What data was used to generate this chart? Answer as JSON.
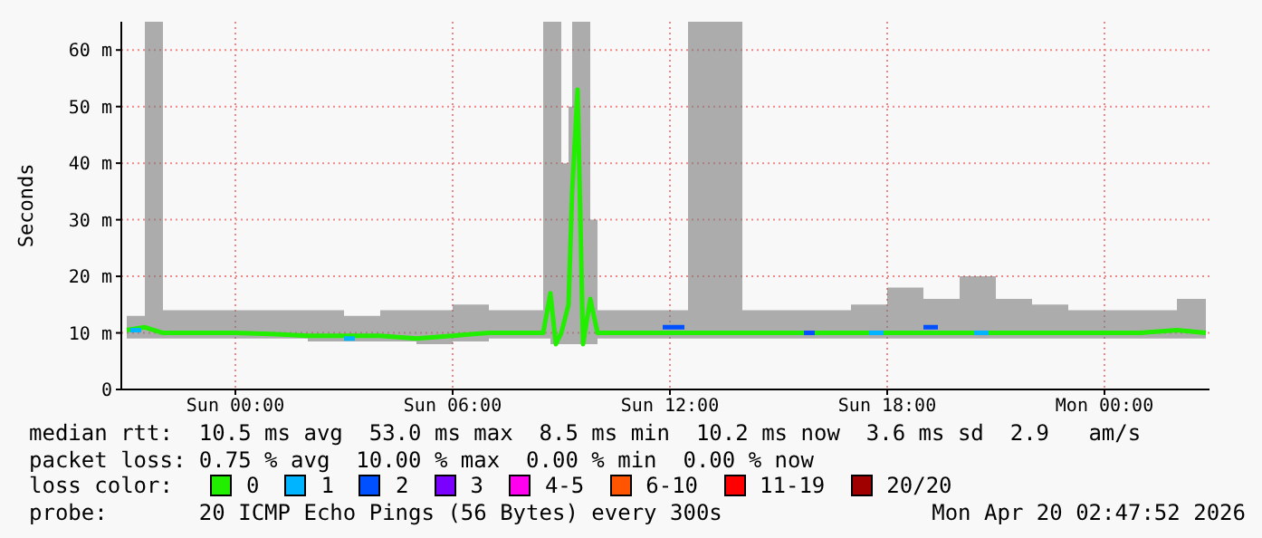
{
  "chart_data": {
    "type": "line",
    "ylabel": "Seconds",
    "legend_title": "loss color:",
    "legend": "bottom",
    "grid": true,
    "line_style": "solid",
    "marker": "none",
    "xlim": [
      "2026-04-18T20:51",
      "2026-04-20T02:54"
    ],
    "xticks": [
      {
        "value": "2026-04-19T00:00",
        "label": "Sun 00:00"
      },
      {
        "value": "2026-04-19T06:00",
        "label": "Sun 06:00"
      },
      {
        "value": "2026-04-19T12:00",
        "label": "Sun 12:00"
      },
      {
        "value": "2026-04-19T18:00",
        "label": "Sun 18:00"
      },
      {
        "value": "2026-04-20T00:00",
        "label": "Mon 00:00"
      }
    ],
    "ylim": [
      0,
      65
    ],
    "yticks": [
      0,
      {
        "value": 10,
        "label": "10 m"
      },
      {
        "value": 20,
        "label": "20 m"
      },
      {
        "value": 30,
        "label": "30 m"
      },
      {
        "value": 40,
        "label": "40 m"
      },
      {
        "value": 50,
        "label": "50 m"
      },
      {
        "value": 60,
        "label": "60 m"
      }
    ],
    "series": [
      {
        "name": "0",
        "color": "#22ee00",
        "x": [
          "2026-04-18T21:00",
          "2026-04-18T21:30",
          "2026-04-18T22:00",
          "2026-04-18T23:00",
          "2026-04-19T00:00",
          "2026-04-19T01:00",
          "2026-04-19T02:00",
          "2026-04-19T03:00",
          "2026-04-19T04:00",
          "2026-04-19T05:00",
          "2026-04-19T06:00",
          "2026-04-19T07:00",
          "2026-04-19T08:00",
          "2026-04-19T08:30",
          "2026-04-19T08:42",
          "2026-04-19T08:51",
          "2026-04-19T09:00",
          "2026-04-19T09:12",
          "2026-04-19T09:18",
          "2026-04-19T09:27",
          "2026-04-19T09:36",
          "2026-04-19T09:48",
          "2026-04-19T10:00",
          "2026-04-19T11:00",
          "2026-04-19T12:00",
          "2026-04-19T12:30",
          "2026-04-19T13:00",
          "2026-04-19T13:30",
          "2026-04-19T14:00",
          "2026-04-19T15:00",
          "2026-04-19T16:00",
          "2026-04-19T17:00",
          "2026-04-19T18:00",
          "2026-04-19T19:00",
          "2026-04-19T20:00",
          "2026-04-19T21:00",
          "2026-04-19T22:00",
          "2026-04-19T23:00",
          "2026-04-20T00:00",
          "2026-04-20T01:00",
          "2026-04-20T02:00",
          "2026-04-20T02:48"
        ],
        "values": [
          10.5,
          11,
          10,
          10,
          10,
          9.8,
          9.5,
          9.5,
          9.5,
          9,
          9.5,
          10,
          10,
          10,
          17,
          8,
          10,
          15,
          35,
          53,
          8,
          16,
          10,
          10,
          10,
          10,
          10,
          10,
          10,
          10,
          10,
          10,
          10,
          10,
          10,
          10,
          10,
          10,
          10,
          10,
          10.5,
          10
        ],
        "upper": [
          13,
          65,
          14,
          14,
          14,
          14,
          14,
          13,
          14,
          14,
          15,
          14,
          14,
          65,
          65,
          65,
          40,
          50,
          65,
          65,
          65,
          30,
          14,
          14,
          14,
          65,
          65,
          65,
          14,
          14,
          14,
          15,
          18,
          16,
          20,
          16,
          15,
          14,
          14,
          14,
          16,
          14
        ],
        "lower": [
          9,
          9,
          9,
          9,
          9,
          9,
          8.5,
          8.5,
          8.5,
          8,
          8.5,
          9,
          9,
          9,
          8,
          8,
          8,
          8,
          8,
          8,
          8,
          8,
          9,
          9,
          9,
          9,
          9,
          9,
          9,
          9,
          9,
          9,
          9,
          9,
          9,
          9,
          9,
          9,
          9,
          9,
          9,
          9
        ]
      },
      {
        "name": "1",
        "color": "#00b4ff",
        "x": [
          "2026-04-18T21:06",
          "2026-04-18T21:24",
          "2026-04-18T21:30",
          "2026-04-19T03:00",
          "2026-04-19T03:18",
          "2026-04-19T03:24",
          "2026-04-19T17:30",
          "2026-04-19T17:54",
          "2026-04-19T18:00",
          "2026-04-19T20:24",
          "2026-04-19T20:48"
        ],
        "values": [
          10.5,
          10.5,
          null,
          9,
          9,
          null,
          10,
          10,
          null,
          10,
          10
        ]
      },
      {
        "name": "2",
        "color": "#0050ff",
        "x": [
          "2026-04-19T11:48",
          "2026-04-19T12:24",
          "2026-04-19T12:30",
          "2026-04-19T15:42",
          "2026-04-19T16:00",
          "2026-04-19T16:06",
          "2026-04-19T19:00",
          "2026-04-19T19:24"
        ],
        "values": [
          11,
          11,
          null,
          10,
          10,
          null,
          11,
          11
        ]
      },
      {
        "name": "3",
        "color": "#7a00ff"
      },
      {
        "name": "4-5",
        "color": "#ff00ee"
      },
      {
        "name": "6-10",
        "color": "#ff5500"
      },
      {
        "name": "11-19",
        "color": "#ff0000"
      },
      {
        "name": "20/20",
        "color": "#a00000"
      }
    ],
    "annotations": [
      "median rtt:  10.5 ms avg  53.0 ms max  8.5 ms min  10.2 ms now  3.6 ms sd  2.9   am/s",
      "packet loss: 0.75 % avg  10.00 % max  0.00 % min  0.00 % now",
      "probe:       20 ICMP Echo Pings (56 Bytes) every 300s",
      "Mon Apr 20 02:47:52 2026"
    ]
  }
}
